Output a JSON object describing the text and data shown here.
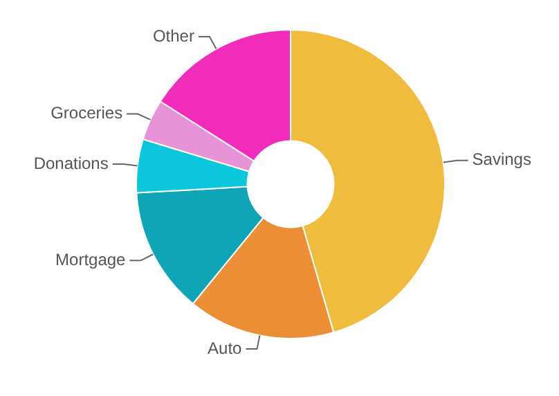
{
  "chart_data": {
    "type": "donut",
    "categories": [
      "Savings",
      "Auto",
      "Mortgage",
      "Donations",
      "Groceries",
      "Other"
    ],
    "values": [
      45.5,
      15.4,
      13.2,
      5.6,
      4.3,
      16
    ],
    "colors": [
      "#f0bc3e",
      "#eb8e35",
      "#0fa5b6",
      "#0cc6dc",
      "#e893d8",
      "#f22cba"
    ],
    "legend": false
  }
}
